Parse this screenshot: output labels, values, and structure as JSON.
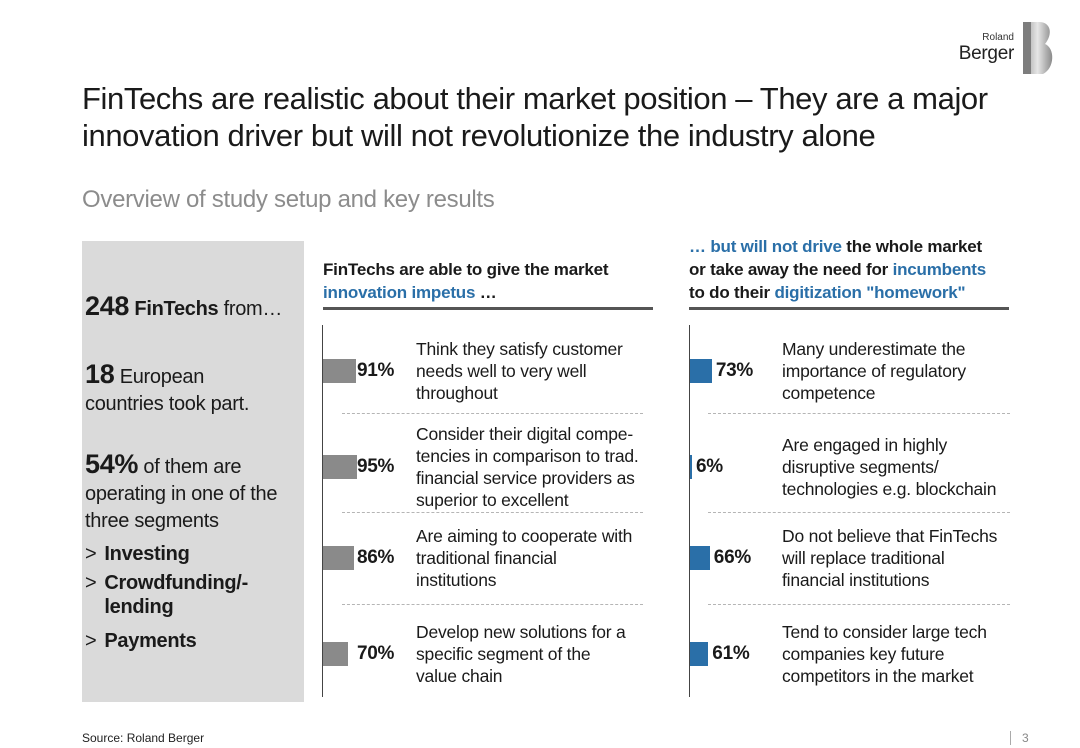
{
  "brand": {
    "line1": "Roland",
    "line2": "Berger"
  },
  "title": "FinTechs are realistic about their market position – They are a major innovation driver but will not revolutionize the industry alone",
  "subtitle": "Overview of study setup and key results",
  "left_panel": {
    "n1": "248",
    "n1_bold": "FinTechs",
    "n1_rest": " from…",
    "n2": "18",
    "n2_rest_a": " European",
    "n2_rest_b": "countries took part.",
    "n3": "54%",
    "n3_rest_a": " of them are",
    "n3_rest_b": "operating in one of the three segments",
    "segments": [
      "Investing",
      "Crowdfunding/-lending",
      "Payments"
    ],
    "bullet": ">"
  },
  "left_chart": {
    "heading_line1": "FinTechs are able to give the market",
    "heading_blue": "innovation impetus",
    "heading_tail": " …"
  },
  "right_chart": {
    "heading_blue1": "… but will not drive",
    "heading_rest1": " the whole market",
    "heading_line2_a": "or take away the need for ",
    "heading_blue2": "incumbents",
    "heading_line3_a": "to do their ",
    "heading_blue3": "digitization \"homework\""
  },
  "chart_data": [
    {
      "type": "bar",
      "orientation": "horizontal",
      "color": "#8a8a8a",
      "categories": [
        "Think they satisfy customer needs well to very well throughout",
        "Consider their digital compe-tencies in comparison to trad. financial service providers as superior to excellent",
        "Are aiming to cooperate with traditional financial institutions",
        "Develop new solutions for a specific segment of the value chain"
      ],
      "values": [
        91,
        95,
        86,
        70
      ],
      "labels": [
        "91%",
        "95%",
        "86%",
        "70%"
      ],
      "desc_lines": [
        [
          "Think they satisfy customer",
          "needs well to very well",
          "throughout"
        ],
        [
          "Consider their digital compe-",
          "tencies in comparison to trad.",
          "financial service providers as",
          "superior to excellent"
        ],
        [
          "Are aiming to cooperate with",
          "traditional financial",
          "institutions"
        ],
        [
          "Develop new solutions for a",
          "specific segment of the",
          "value chain"
        ]
      ],
      "unit": "%",
      "xlim": [
        0,
        100
      ]
    },
    {
      "type": "bar",
      "orientation": "horizontal",
      "color": "#2a6fa8",
      "categories": [
        "Many underestimate the importance of regulatory competence",
        "Are engaged in highly disruptive segments/ technologies e.g. blockchain",
        "Do not believe that FinTechs will replace traditional financial institutions",
        "Tend to consider large tech companies key future competitors in the market"
      ],
      "values": [
        73,
        6,
        66,
        61
      ],
      "labels": [
        "73%",
        "6%",
        "66%",
        "61%"
      ],
      "desc_lines": [
        [
          "Many underestimate the",
          "importance of regulatory",
          "competence"
        ],
        [
          "Are engaged in highly",
          "disruptive segments/",
          "technologies e.g. blockchain"
        ],
        [
          "Do not believe that FinTechs",
          "will replace traditional",
          "financial institutions"
        ],
        [
          "Tend to consider large tech",
          "companies key future",
          "competitors in the market"
        ]
      ],
      "unit": "%",
      "xlim": [
        0,
        100
      ]
    }
  ],
  "footer": {
    "source": "Source: Roland Berger",
    "page": "3"
  }
}
